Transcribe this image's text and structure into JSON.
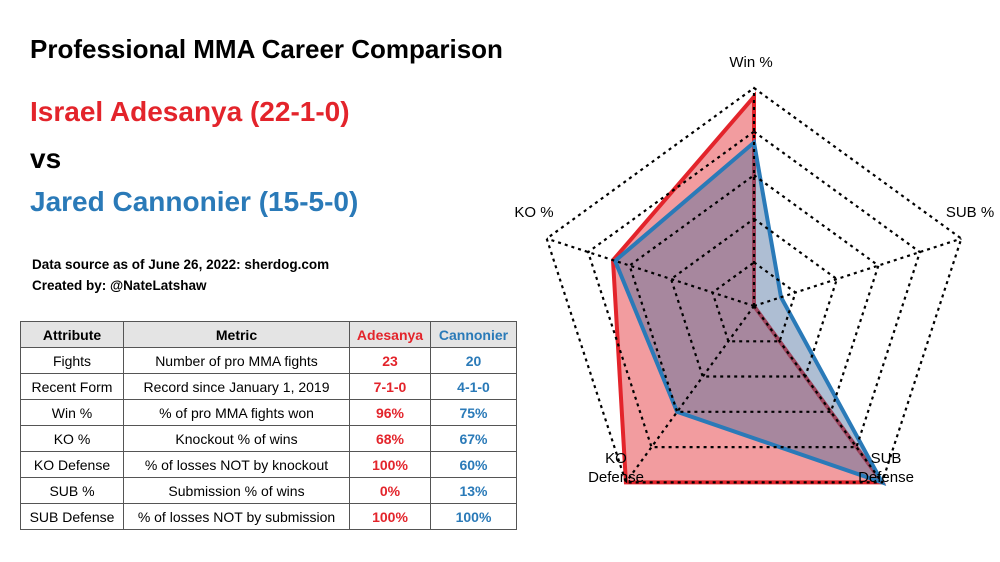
{
  "header": {
    "title": "Professional MMA Career Comparison",
    "fighter1": "Israel Adesanya (22-1-0)",
    "vs": "vs",
    "fighter2": "Jared Cannonier (15-5-0)",
    "source": "Data source as of June 26, 2022: sherdog.com",
    "created_by": "Created by: @NateLatshaw"
  },
  "table": {
    "headers": [
      "Attribute",
      "Metric",
      "Adesanya",
      "Cannonier"
    ],
    "rows": [
      {
        "attribute": "Fights",
        "metric": "Number of pro MMA fights",
        "adesanya": "23",
        "cannonier": "20"
      },
      {
        "attribute": "Recent Form",
        "metric": "Record since January 1, 2019",
        "adesanya": "7-1-0",
        "cannonier": "4-1-0"
      },
      {
        "attribute": "Win %",
        "metric": "% of pro MMA fights won",
        "adesanya": "96%",
        "cannonier": "75%"
      },
      {
        "attribute": "KO %",
        "metric": "Knockout % of wins",
        "adesanya": "68%",
        "cannonier": "67%"
      },
      {
        "attribute": "KO Defense",
        "metric": "% of losses NOT by knockout",
        "adesanya": "100%",
        "cannonier": "60%"
      },
      {
        "attribute": "SUB %",
        "metric": "Submission % of wins",
        "adesanya": "0%",
        "cannonier": "13%"
      },
      {
        "attribute": "SUB Defense",
        "metric": "% of losses NOT by submission",
        "adesanya": "100%",
        "cannonier": "100%"
      }
    ]
  },
  "colors": {
    "adesanya": "#e3242b",
    "cannonier": "#2a7ab8"
  },
  "chart_data": {
    "type": "radar",
    "axes": [
      "Win %",
      "SUB %",
      "SUB Defense",
      "KO Defense",
      "KO %"
    ],
    "axis_labels": [
      [
        "Win %"
      ],
      [
        "SUB %"
      ],
      [
        "SUB",
        "Defense"
      ],
      [
        "KO",
        "Defense"
      ],
      [
        "KO %"
      ]
    ],
    "range": [
      0,
      100
    ],
    "rings": 5,
    "series": [
      {
        "name": "Adesanya",
        "values": [
          96,
          0,
          100,
          100,
          68
        ]
      },
      {
        "name": "Cannonier",
        "values": [
          75,
          13,
          100,
          60,
          67
        ]
      }
    ]
  }
}
